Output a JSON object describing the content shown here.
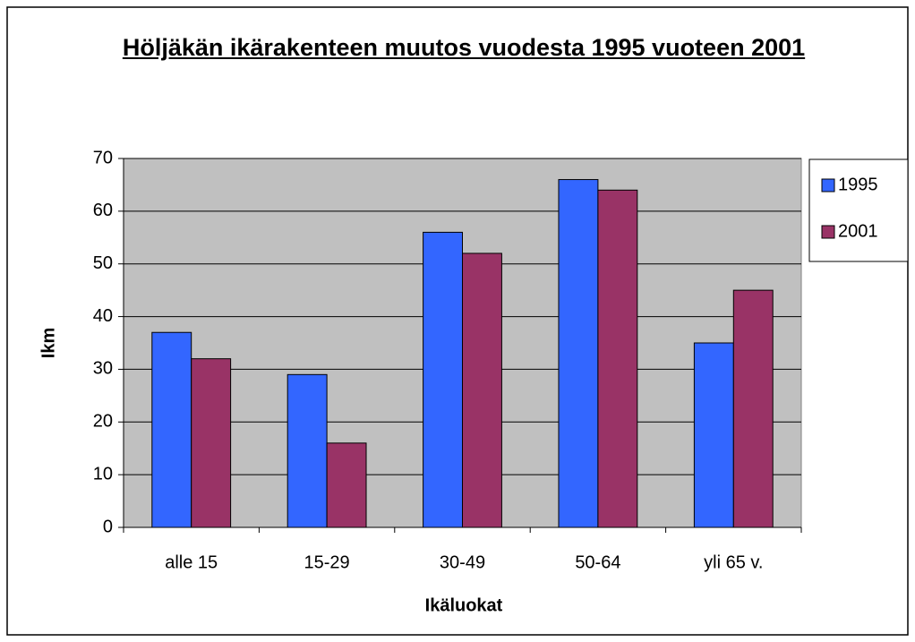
{
  "chart_data": {
    "type": "bar",
    "title": "Höljäkän ikärakenteen muutos vuodesta 1995 vuoteen 2001",
    "x_label": "Ikäluokat",
    "y_label": "Ikm",
    "categories": [
      "alle 15",
      "15-29",
      "30-49",
      "50-64",
      "yli 65 v."
    ],
    "series": [
      {
        "name": "1995",
        "color": "#3366ff",
        "values": [
          37,
          29,
          56,
          66,
          35
        ]
      },
      {
        "name": "2001",
        "color": "#993366",
        "values": [
          32,
          16,
          52,
          64,
          45
        ]
      }
    ],
    "ylim": [
      0,
      70
    ],
    "yticks": [
      0,
      10,
      20,
      30,
      40,
      50,
      60,
      70
    ],
    "grid": true,
    "legend": "right"
  }
}
